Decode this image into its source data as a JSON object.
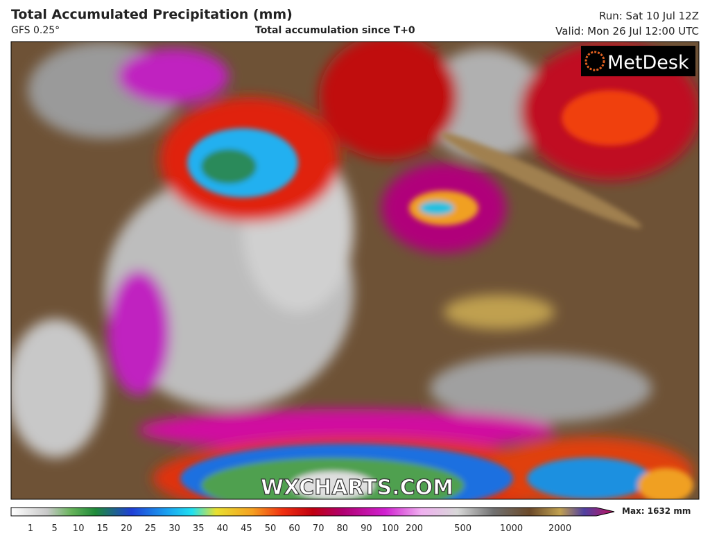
{
  "header": {
    "title": "Total Accumulated Precipitation (mm)",
    "model": "GFS 0.25°",
    "subtitle": "Total accumulation since T+0",
    "run": "Run: Sat 10 Jul 12Z",
    "valid": "Valid: Mon 26 Jul 12:00 UTC"
  },
  "map": {
    "logo": "MetDesk",
    "watermark": "WXCHARTS.COM"
  },
  "legend": {
    "ticks": [
      1,
      5,
      10,
      15,
      20,
      25,
      30,
      35,
      40,
      45,
      50,
      60,
      70,
      80,
      90,
      100,
      200,
      500,
      1000,
      2000
    ],
    "max_label": "Max: 1632 mm"
  }
}
